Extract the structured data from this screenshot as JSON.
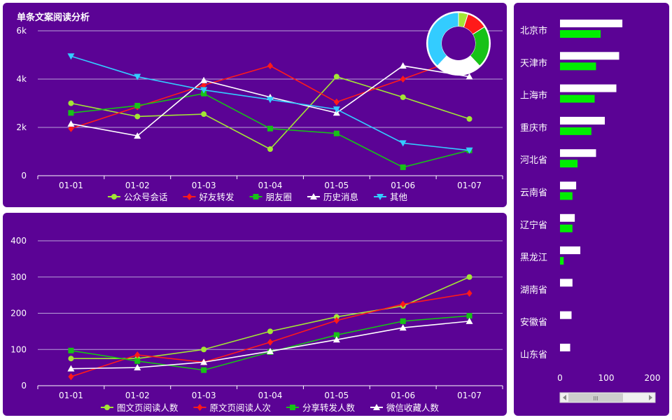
{
  "colors": {
    "panel_bg": "#5b0395",
    "grid": "#b8a0d8",
    "text": "#ffffff",
    "lime": "#a3e635",
    "red": "#ff1a1a",
    "green": "#17c217",
    "white": "#ffffff",
    "cyan": "#33ccff",
    "bar_green": "#00ee00"
  },
  "chart_data": [
    {
      "type": "line",
      "title": "单条文案阅读分析",
      "x": [
        "01-01",
        "01-02",
        "01-03",
        "01-04",
        "01-05",
        "01-06",
        "01-07"
      ],
      "y_ticks": [
        "0",
        "2k",
        "4k",
        "6k"
      ],
      "ylim": [
        0,
        6000
      ],
      "grid": true,
      "legend_position": "bottom",
      "series": [
        {
          "name": "公众号会话",
          "color": "#a3e635",
          "marker": "circle",
          "values": [
            3000,
            2450,
            2550,
            1100,
            4100,
            3250,
            2350
          ]
        },
        {
          "name": "好友转发",
          "color": "#ff1a1a",
          "marker": "diamond",
          "values": [
            1950,
            2850,
            3750,
            4550,
            3050,
            4000,
            5000
          ]
        },
        {
          "name": "朋友圈",
          "color": "#17c217",
          "marker": "square",
          "values": [
            2600,
            2900,
            3400,
            1950,
            1750,
            350,
            1050
          ]
        },
        {
          "name": "历史消息",
          "color": "#ffffff",
          "marker": "triangle",
          "values": [
            2150,
            1650,
            3950,
            3250,
            2600,
            4550,
            4100
          ]
        },
        {
          "name": "其他",
          "color": "#33ccff",
          "marker": "triangle-down",
          "values": [
            4950,
            4100,
            3550,
            3150,
            2750,
            1350,
            1050
          ]
        }
      ],
      "pie": {
        "type": "pie",
        "donut": true,
        "slices": [
          {
            "color": "#a3e635",
            "value": 5
          },
          {
            "color": "#ff1a1a",
            "value": 11
          },
          {
            "color": "#17c217",
            "value": 22
          },
          {
            "color": "#ffffff",
            "value": 24
          },
          {
            "color": "#33ccff",
            "value": 38
          }
        ]
      }
    },
    {
      "type": "line",
      "title": "",
      "x": [
        "01-01",
        "01-02",
        "01-03",
        "01-04",
        "01-05",
        "01-06",
        "01-07"
      ],
      "y_ticks": [
        "0",
        "100",
        "200",
        "300",
        "400"
      ],
      "ylim": [
        0,
        400
      ],
      "grid": true,
      "legend_position": "bottom",
      "series": [
        {
          "name": "图文页阅读人数",
          "color": "#a3e635",
          "marker": "circle",
          "values": [
            75,
            75,
            100,
            150,
            190,
            220,
            300
          ]
        },
        {
          "name": "原文页阅读人次",
          "color": "#ff1a1a",
          "marker": "diamond",
          "values": [
            25,
            85,
            65,
            120,
            180,
            225,
            255
          ]
        },
        {
          "name": "分享转发人数",
          "color": "#17c217",
          "marker": "square",
          "values": [
            97,
            68,
            43,
            93,
            140,
            178,
            193
          ]
        },
        {
          "name": "微信收藏人数",
          "color": "#ffffff",
          "marker": "triangle",
          "values": [
            47,
            50,
            65,
            95,
            127,
            160,
            178
          ]
        }
      ]
    },
    {
      "type": "bar",
      "orientation": "horizontal",
      "categories": [
        "北京市",
        "天津市",
        "上海市",
        "重庆市",
        "河北省",
        "云南省",
        "辽宁省",
        "黑龙江",
        "湖南省",
        "安徽省",
        "山东省"
      ],
      "x_ticks": [
        "0",
        "100",
        "200"
      ],
      "xlim": [
        0,
        200
      ],
      "series": [
        {
          "color": "#ffffff",
          "values": [
            135,
            128,
            122,
            97,
            78,
            35,
            32,
            44,
            27,
            25,
            22
          ]
        },
        {
          "color": "#00ee00",
          "values": [
            88,
            78,
            75,
            68,
            38,
            27,
            27,
            8,
            0,
            0,
            0
          ]
        }
      ],
      "scrollbar": {
        "thumb_label": "III"
      }
    }
  ]
}
